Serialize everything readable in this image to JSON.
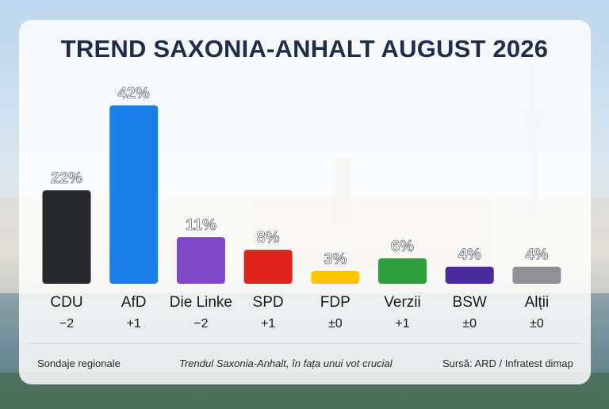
{
  "title": "TREND SAXONIA-ANHALT AUGUST 2026",
  "footer": {
    "left": "Sondaje regionale",
    "middle": "Trendul Saxonia-Anhalt, în fața unui vot crucial",
    "right": "Sursă: ARD / Infratest dimap"
  },
  "chart_data": {
    "type": "bar",
    "categories": [
      "CDU",
      "AfD",
      "Die Linke",
      "SPD",
      "FDP",
      "Verzii",
      "BSW",
      "Alții"
    ],
    "values": [
      22,
      42,
      11,
      8,
      3,
      6,
      4,
      4
    ],
    "value_labels": [
      "22%",
      "42%",
      "11%",
      "8%",
      "3%",
      "6%",
      "4%",
      "4%"
    ],
    "changes": [
      "−2",
      "+1",
      "−2",
      "+1",
      "±0",
      "+1",
      "±0",
      "±0"
    ],
    "colors": [
      "#26282c",
      "#1a7fe8",
      "#8048c8",
      "#e1231e",
      "#fcc500",
      "#2e9e3e",
      "#4b2aa0",
      "#8e9093"
    ],
    "ylim": [
      0,
      42
    ],
    "grid": false,
    "legend": "none"
  }
}
